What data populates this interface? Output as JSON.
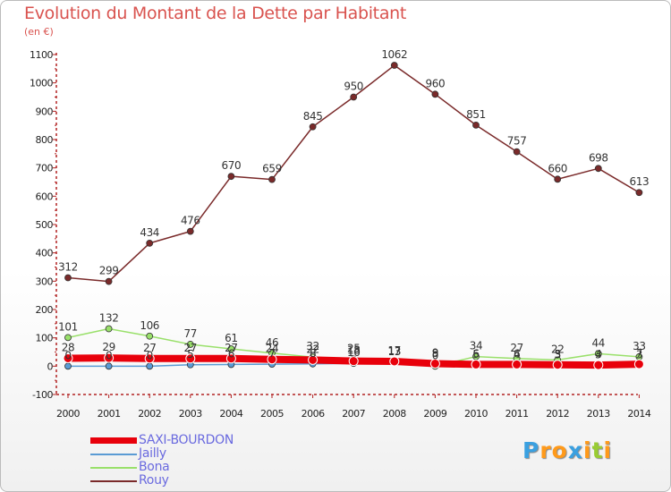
{
  "chart_data": {
    "type": "line",
    "title": "Evolution du Montant de la Dette par Habitant",
    "ylabel": "(en €)",
    "xlabel": "",
    "x": [
      "2000",
      "2001",
      "2002",
      "2003",
      "2004",
      "2005",
      "2006",
      "2007",
      "2008",
      "2009",
      "2010",
      "2011",
      "2012",
      "2013",
      "2014"
    ],
    "ylim": [
      -100,
      1100
    ],
    "yticks": [
      "-100",
      "0",
      "100",
      "200",
      "300",
      "400",
      "500",
      "600",
      "700",
      "800",
      "900",
      "1000",
      "1100"
    ],
    "grid": false,
    "legend_position": "bottom-left",
    "series": [
      {
        "name": "SAXI-BOURDON",
        "color": "#e8000b",
        "values": [
          28,
          29,
          27,
          27,
          27,
          24,
          22,
          18,
          17,
          9,
          6,
          6,
          5,
          4,
          7
        ],
        "labels": [
          "28",
          "29",
          "27",
          "27",
          "27",
          "24",
          "22",
          "18",
          "17",
          "9",
          "6",
          "6",
          "5",
          "4",
          "7"
        ]
      },
      {
        "name": "Jailly",
        "color": "#5a9bd4",
        "values": [
          0,
          0,
          0,
          5,
          6,
          7,
          8,
          10,
          13,
          8,
          5,
          4,
          3,
          3,
          3
        ],
        "labels": [
          "0",
          "0",
          "0",
          "5",
          "6",
          "7",
          "8",
          "10",
          "13",
          "8",
          "5",
          "4",
          "3",
          "3",
          "3"
        ]
      },
      {
        "name": "Bona",
        "color": "#99e06a",
        "values": [
          101,
          132,
          106,
          77,
          61,
          46,
          32,
          25,
          13,
          0,
          34,
          27,
          22,
          44,
          33
        ],
        "labels": [
          "101",
          "132",
          "106",
          "77",
          "61",
          "46",
          "32",
          "25",
          "13",
          "0",
          "34",
          "27",
          "22",
          "44",
          "33"
        ]
      },
      {
        "name": "Rouy",
        "color": "#7a2a2a",
        "values": [
          312,
          299,
          434,
          476,
          670,
          659,
          845,
          950,
          1062,
          960,
          851,
          757,
          660,
          698,
          613
        ],
        "labels": [
          "312",
          "299",
          "434",
          "476",
          "670",
          "659",
          "845",
          "950",
          "1062",
          "960",
          "851",
          "757",
          "660",
          "698",
          "613"
        ]
      }
    ]
  },
  "logo": {
    "letters": [
      "P",
      "r",
      "o",
      "x",
      "i",
      "t",
      "i"
    ],
    "colors": [
      "#3aa0e0",
      "#ff9a1a",
      "#ff9a1a",
      "#3aa0e0",
      "#ff9a1a",
      "#99cc33",
      "#ff9a1a"
    ]
  }
}
